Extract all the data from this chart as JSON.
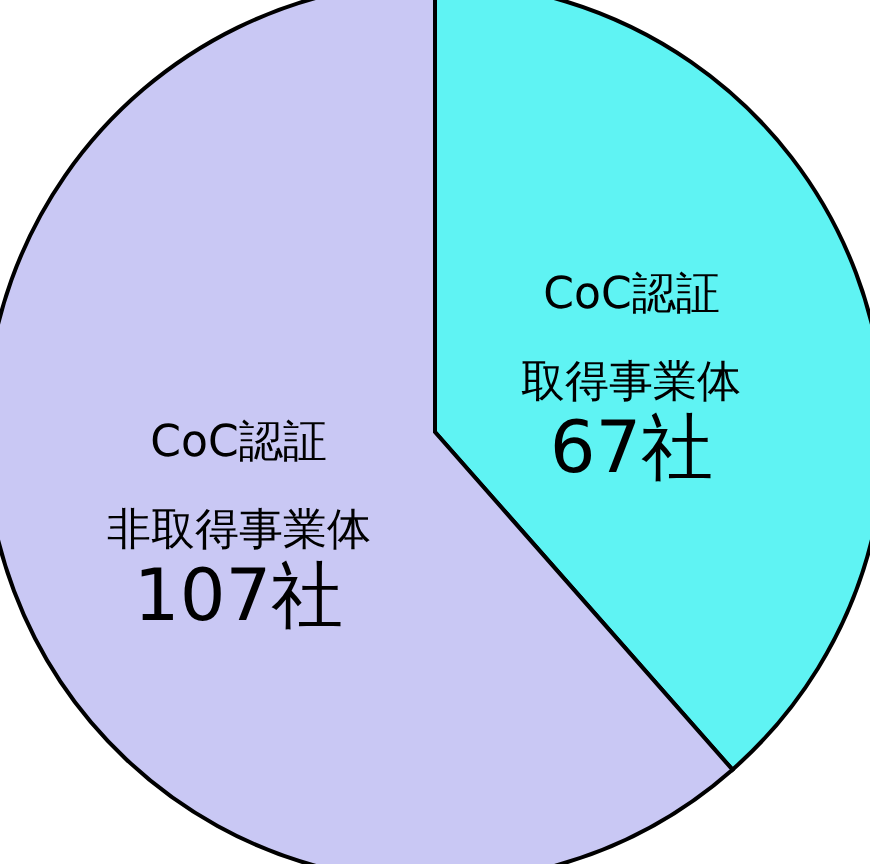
{
  "chart_data": {
    "type": "pie",
    "categories": [
      "CoC認証取得事業体",
      "CoC認証非取得事業体"
    ],
    "values": [
      67,
      107
    ],
    "colors": [
      "#5ff3f3",
      "#c9c8f4"
    ],
    "value_labels": [
      "67社",
      "107社"
    ]
  }
}
